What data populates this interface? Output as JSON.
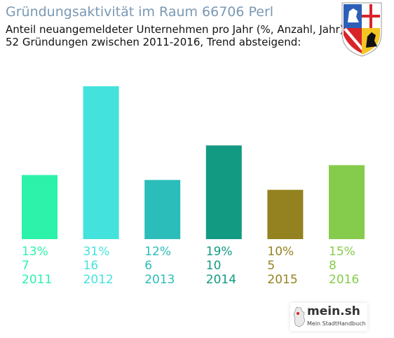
{
  "header": {
    "title": "Gründungsaktivität im Raum 66706 Perl",
    "subtitle_line1": "Anteil neuangemeldeter Unternehmen pro Jahr (%, Anzahl, Jahr)",
    "subtitle_line2": "52 Gründungen zwischen 2011-2016, Trend absteigend:"
  },
  "logo": {
    "name": "mein.sh",
    "tagline": "Mein StadtHandbuch",
    "icon": "germany-map-icon"
  },
  "crest": {
    "icon": "saarland-coat-of-arms-icon"
  },
  "chart_data": {
    "type": "bar",
    "title": "Gründungsaktivität im Raum 66706 Perl",
    "categories": [
      "2011",
      "2012",
      "2013",
      "2014",
      "2015",
      "2016"
    ],
    "percent_labels": [
      "13%",
      "31%",
      "12%",
      "19%",
      "10%",
      "15%"
    ],
    "series": [
      {
        "values": [
          7,
          16,
          6,
          10,
          5,
          8
        ]
      }
    ],
    "percent_values": [
      13,
      31,
      12,
      19,
      10,
      15
    ],
    "colors": [
      "#2cf2aa",
      "#44e2dc",
      "#2bbdb9",
      "#129a83",
      "#93821f",
      "#86cc4c"
    ],
    "grid": false,
    "legend": "none"
  }
}
